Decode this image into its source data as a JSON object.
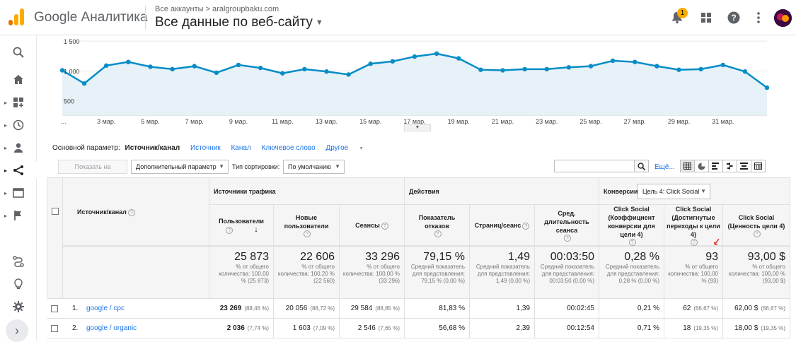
{
  "header": {
    "logo_text": "Google Аналитика",
    "breadcrumb": "Все аккаунты > aralgroupbaku.com",
    "view_title": "Все данные по веб-сайту",
    "notification_count": "1"
  },
  "chart_data": {
    "type": "area",
    "yticks": [
      "1 500",
      "1 000",
      "500"
    ],
    "y_tick_values": [
      1500,
      1000,
      500
    ],
    "ylim": [
      260,
      1560
    ],
    "x_labels": [
      "...",
      "3 мар.",
      "5 мар.",
      "7 мар.",
      "9 мар.",
      "11 мар.",
      "13 мар.",
      "15 мар.",
      "17 мар.",
      "19 мар.",
      "21 мар.",
      "23 мар.",
      "25 мар.",
      "27 мар.",
      "29 мар.",
      "31 мар."
    ],
    "series": [
      {
        "values": [
          1010,
          790,
          1090,
          1150,
          1070,
          1030,
          1080,
          970,
          1100,
          1050,
          960,
          1030,
          990,
          940,
          1120,
          1160,
          1240,
          1290,
          1210,
          1020,
          1010,
          1030,
          1030,
          1060,
          1080,
          1170,
          1150,
          1080,
          1020,
          1030,
          1100,
          990,
          720
        ]
      }
    ],
    "grid": true,
    "color": "#058dc7",
    "fill": "#e6f1f8"
  },
  "dimension_bar": {
    "label": "Основной параметр:",
    "active": "Источник/канал",
    "options": [
      "Источник",
      "Канал",
      "Ключевое слово"
    ],
    "other": "Другое"
  },
  "toolbar": {
    "plot_button": "Показать на диаграмме",
    "secondary_dim": "Дополнительный параметр",
    "sort_label": "Тип сортировки:",
    "sort_value": "По умолчанию",
    "more_link": "Ещё..."
  },
  "table": {
    "dim_header": "Источник/канал",
    "groups": {
      "traffic": "Источники трафика",
      "actions": "Действия",
      "conversions": "Конверсии",
      "goal_select": "Цель 4: Click Social"
    },
    "columns": [
      "Пользователи",
      "Новые пользователи",
      "Сеансы",
      "Показатель отказов",
      "Страниц/сеанс",
      "Сред. длительность сеанса",
      "Click Social (Коэффициент конверсии для цели 4)",
      "Click Social (Достигнутые переходы к цели 4)",
      "Click Social (Ценность цели 4)"
    ],
    "totals": [
      {
        "value": "25 873",
        "sub": "% от общего количества: 100,00 % (25 873)"
      },
      {
        "value": "22 606",
        "sub": "% от общего количества: 100,20 % (22 560)"
      },
      {
        "value": "33 296",
        "sub": "% от общего количества: 100,00 % (33 296)"
      },
      {
        "value": "79,15 %",
        "sub": "Средний показатель для представления: 79,15 % (0,00 %)"
      },
      {
        "value": "1,49",
        "sub": "Средний показатель для представления: 1,49 (0,00 %)"
      },
      {
        "value": "00:03:50",
        "sub": "Средний показатель для представления: 00:03:50 (0,00 %)"
      },
      {
        "value": "0,28 %",
        "sub": "Средний показатель для представления: 0,28 % (0,00 %)"
      },
      {
        "value": "93",
        "sub": "% от общего количества: 100,00 % (93)"
      },
      {
        "value": "93,00 $",
        "sub": "% от общего количества: 100,00 % (93,00 $)"
      }
    ],
    "rows": [
      {
        "num": "1.",
        "source": "google / cpc",
        "cells": [
          {
            "v": "23 269",
            "p": "(88,46 %)",
            "bold": true
          },
          {
            "v": "20 056",
            "p": "(88,72 %)"
          },
          {
            "v": "29 584",
            "p": "(88,85 %)"
          },
          {
            "v": "81,83 %",
            "p": ""
          },
          {
            "v": "1,39",
            "p": ""
          },
          {
            "v": "00:02:45",
            "p": ""
          },
          {
            "v": "0,21 %",
            "p": ""
          },
          {
            "v": "62",
            "p": "(66,67 %)"
          },
          {
            "v": "62,00 $",
            "p": "(66,67 %)"
          }
        ]
      },
      {
        "num": "2.",
        "source": "google / organic",
        "cells": [
          {
            "v": "2 036",
            "p": "(7,74 %)",
            "bold": true
          },
          {
            "v": "1 603",
            "p": "(7,09 %)"
          },
          {
            "v": "2 546",
            "p": "(7,65 %)"
          },
          {
            "v": "56,68 %",
            "p": ""
          },
          {
            "v": "2,39",
            "p": ""
          },
          {
            "v": "00:12:54",
            "p": ""
          },
          {
            "v": "0,71 %",
            "p": ""
          },
          {
            "v": "18",
            "p": "(19,35 %)"
          },
          {
            "v": "18,00 $",
            "p": "(19,35 %)"
          }
        ]
      }
    ]
  }
}
